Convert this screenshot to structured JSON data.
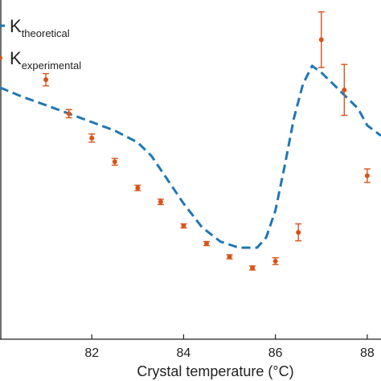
{
  "chart_data": {
    "type": "line",
    "xlabel": "Crystal temperature (°C)",
    "ylabel": "",
    "xlim": [
      80.0,
      88.3
    ],
    "ylim": [
      0,
      1
    ],
    "x_ticks": [
      82,
      84,
      86,
      88
    ],
    "x_tick_labels": [
      "82",
      "84",
      "86",
      "88"
    ],
    "grid": false,
    "legend": {
      "placement": "top-left",
      "entries": [
        {
          "main": "K",
          "sub": "theoretical",
          "style": "dashed-line",
          "color": "#1f77b4"
        },
        {
          "main": "K",
          "sub": "experimental",
          "style": "errorbar-point",
          "color": "#d95319"
        }
      ]
    },
    "series": [
      {
        "style": "dashed-line",
        "color": "#1f77b4",
        "x": [
          80.0,
          80.5,
          81.0,
          81.5,
          82.0,
          82.5,
          83.0,
          83.3,
          83.6,
          84.0,
          84.4,
          84.8,
          85.2,
          85.6,
          85.8,
          86.0,
          86.2,
          86.4,
          86.6,
          86.8,
          87.0,
          87.2,
          87.5,
          87.8,
          88.0,
          88.3
        ],
        "y": [
          0.742,
          0.714,
          0.69,
          0.665,
          0.64,
          0.615,
          0.58,
          0.54,
          0.48,
          0.4,
          0.33,
          0.288,
          0.27,
          0.27,
          0.3,
          0.38,
          0.51,
          0.65,
          0.752,
          0.806,
          0.786,
          0.76,
          0.72,
          0.68,
          0.63,
          0.6
        ]
      },
      {
        "style": "errorbar-point",
        "color": "#d95319",
        "x": [
          81.0,
          81.5,
          82.0,
          82.5,
          83.0,
          83.5,
          84.0,
          84.5,
          85.0,
          85.5,
          86.0,
          86.5,
          87.0,
          87.5,
          88.0
        ],
        "y": [
          0.765,
          0.665,
          0.593,
          0.523,
          0.446,
          0.405,
          0.334,
          0.282,
          0.243,
          0.21,
          0.23,
          0.315,
          0.883,
          0.735,
          0.482
        ],
        "err": [
          0.018,
          0.012,
          0.012,
          0.01,
          0.008,
          0.008,
          0.006,
          0.006,
          0.006,
          0.006,
          0.01,
          0.025,
          0.082,
          0.075,
          0.02
        ]
      }
    ]
  }
}
